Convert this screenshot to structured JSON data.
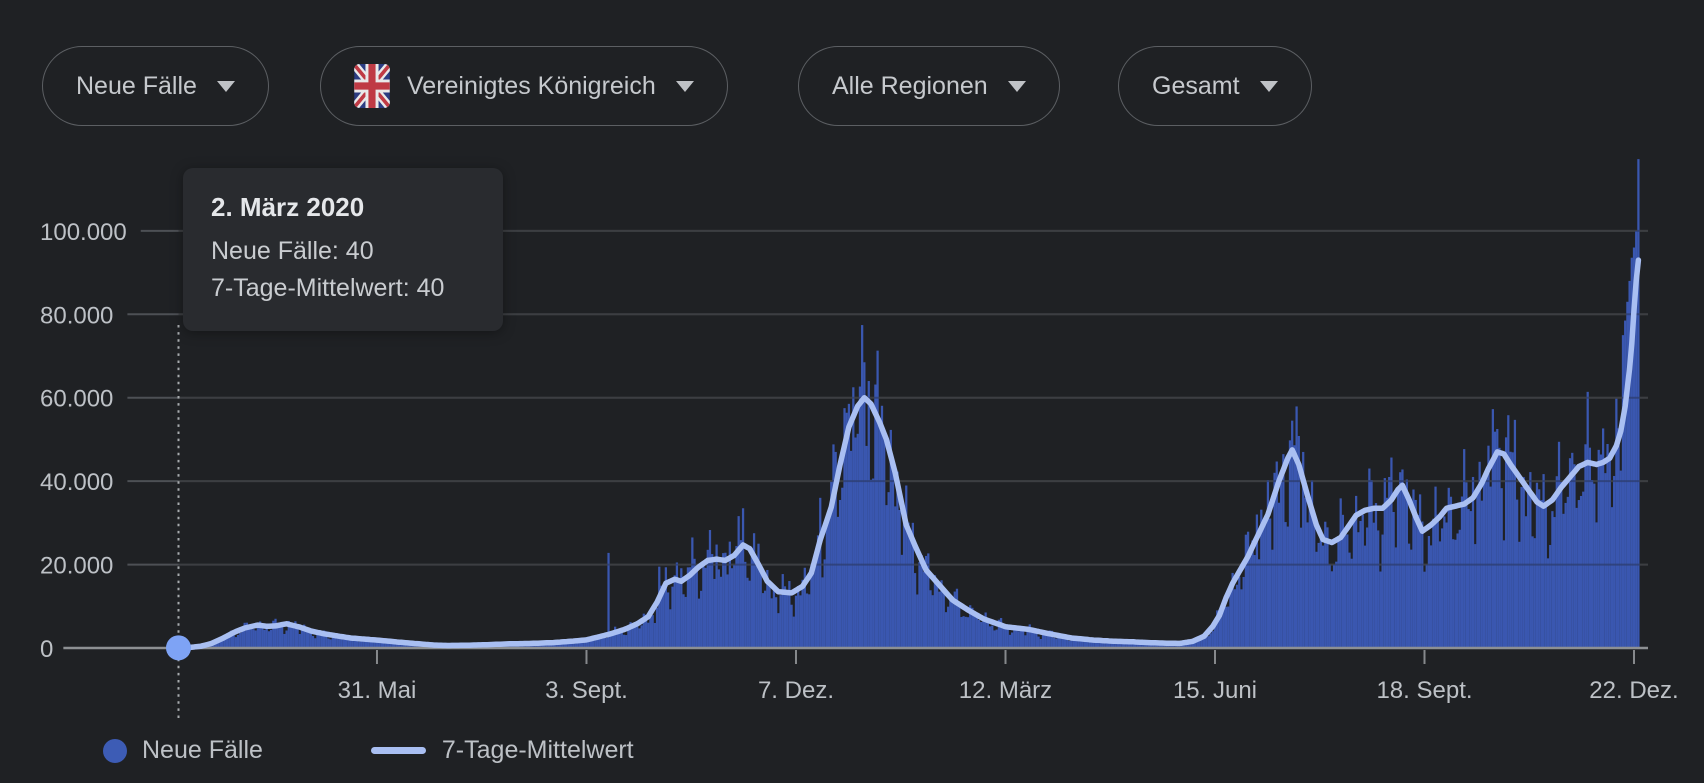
{
  "page": {
    "background": "#1f2124",
    "text_color": "#bdc1c6"
  },
  "controls": [
    {
      "label": "Neue Fälle"
    },
    {
      "label": "Vereinigtes Königreich",
      "flag": "united-kingdom"
    },
    {
      "label": "Alle Regionen"
    },
    {
      "label": "Gesamt"
    }
  ],
  "tooltip": {
    "title": "2. März 2020",
    "lines": [
      "Neue Fälle: 40",
      "7-Tage-Mittelwert: 40"
    ]
  },
  "legend": [
    {
      "label": "Neue Fälle",
      "marker": "dot",
      "color": "#3d5cb5"
    },
    {
      "label": "7-Tage-Mittelwert",
      "marker": "line",
      "color": "#a9bff2"
    }
  ],
  "chart_data": {
    "type": "bar",
    "title": "Neue Fälle – Vereinigtes Königreich",
    "legend_position": "bottom",
    "grid": true,
    "colors": {
      "bars": "#3a57b0",
      "avg_line": "#a9bff2",
      "gridline": "#4d5055",
      "baseline": "#8d9093",
      "axis_text": "#bdc1c6",
      "highlight_dot": "#7ea3f5",
      "dotted_guide": "#a7abae"
    },
    "series": [
      {
        "name": "Neue Fälle",
        "type": "bar",
        "color": "#3a57b0"
      },
      {
        "name": "7-Tage-Mittelwert",
        "type": "line",
        "color": "#a9bff2"
      }
    ],
    "x_axis": {
      "start_date": "2. März 2020",
      "days_total": 662,
      "ticks": [
        {
          "label": "31. Mai",
          "day": 90
        },
        {
          "label": "3. Sept.",
          "day": 185
        },
        {
          "label": "7. Dez.",
          "day": 280
        },
        {
          "label": "12. März",
          "day": 375
        },
        {
          "label": "15. Juni",
          "day": 470
        },
        {
          "label": "18. Sept.",
          "day": 565
        },
        {
          "label": "22. Dez.",
          "day": 660
        }
      ]
    },
    "y_axis": {
      "max": 108000,
      "ticks": [
        {
          "label": "0",
          "value": 0
        },
        {
          "label": "20.000",
          "value": 20000
        },
        {
          "label": "40.000",
          "value": 40000
        },
        {
          "label": "60.000",
          "value": 60000
        },
        {
          "label": "80.000",
          "value": 80000
        },
        {
          "label": "100.000",
          "value": 100000
        }
      ]
    },
    "highlight": {
      "date": "2. März 2020",
      "day": 0,
      "new_cases": 40,
      "avg_7day": 40
    },
    "avg_7day_points": [
      [
        0,
        40
      ],
      [
        5,
        150
      ],
      [
        10,
        400
      ],
      [
        15,
        1100
      ],
      [
        20,
        2300
      ],
      [
        25,
        3700
      ],
      [
        30,
        4800
      ],
      [
        36,
        5500
      ],
      [
        40,
        5200
      ],
      [
        44,
        5300
      ],
      [
        49,
        5800
      ],
      [
        55,
        5000
      ],
      [
        60,
        4100
      ],
      [
        66,
        3400
      ],
      [
        72,
        2900
      ],
      [
        78,
        2400
      ],
      [
        90,
        1900
      ],
      [
        100,
        1400
      ],
      [
        109,
        1000
      ],
      [
        116,
        700
      ],
      [
        122,
        600
      ],
      [
        130,
        650
      ],
      [
        140,
        800
      ],
      [
        150,
        1000
      ],
      [
        160,
        1100
      ],
      [
        170,
        1300
      ],
      [
        180,
        1700
      ],
      [
        185,
        1950
      ],
      [
        190,
        2600
      ],
      [
        196,
        3400
      ],
      [
        202,
        4400
      ],
      [
        208,
        5800
      ],
      [
        213,
        7500
      ],
      [
        217,
        11000
      ],
      [
        221,
        15500
      ],
      [
        225,
        16500
      ],
      [
        228,
        16000
      ],
      [
        232,
        17500
      ],
      [
        236,
        19500
      ],
      [
        240,
        21000
      ],
      [
        244,
        21300
      ],
      [
        248,
        21000
      ],
      [
        252,
        22200
      ],
      [
        256,
        24700
      ],
      [
        259,
        23800
      ],
      [
        263,
        20000
      ],
      [
        267,
        16000
      ],
      [
        272,
        13500
      ],
      [
        278,
        13200
      ],
      [
        283,
        14800
      ],
      [
        287,
        18000
      ],
      [
        291,
        25900
      ],
      [
        296,
        33800
      ],
      [
        300,
        44000
      ],
      [
        304,
        53000
      ],
      [
        308,
        58000
      ],
      [
        311,
        60000
      ],
      [
        314,
        58500
      ],
      [
        318,
        54000
      ],
      [
        321,
        50000
      ],
      [
        325,
        42000
      ],
      [
        330,
        29500
      ],
      [
        334,
        24500
      ],
      [
        339,
        18700
      ],
      [
        345,
        15100
      ],
      [
        351,
        11500
      ],
      [
        358,
        9100
      ],
      [
        365,
        7000
      ],
      [
        375,
        5100
      ],
      [
        385,
        4500
      ],
      [
        395,
        3400
      ],
      [
        405,
        2400
      ],
      [
        415,
        1900
      ],
      [
        425,
        1600
      ],
      [
        432,
        1500
      ],
      [
        440,
        1300
      ],
      [
        448,
        1150
      ],
      [
        454,
        1100
      ],
      [
        460,
        1600
      ],
      [
        465,
        2800
      ],
      [
        469,
        5200
      ],
      [
        472,
        7800
      ],
      [
        475,
        12000
      ],
      [
        478,
        15500
      ],
      [
        481,
        18300
      ],
      [
        485,
        22000
      ],
      [
        489,
        26500
      ],
      [
        494,
        32000
      ],
      [
        499,
        40000
      ],
      [
        503,
        45500
      ],
      [
        505,
        47500
      ],
      [
        508,
        44000
      ],
      [
        512,
        36500
      ],
      [
        516,
        29500
      ],
      [
        519,
        26000
      ],
      [
        523,
        25300
      ],
      [
        527,
        26500
      ],
      [
        531,
        29500
      ],
      [
        534,
        31800
      ],
      [
        538,
        33000
      ],
      [
        542,
        33500
      ],
      [
        546,
        33500
      ],
      [
        550,
        35500
      ],
      [
        553,
        38000
      ],
      [
        555,
        39000
      ],
      [
        558,
        35500
      ],
      [
        561,
        31500
      ],
      [
        564,
        28000
      ],
      [
        568,
        29500
      ],
      [
        572,
        31500
      ],
      [
        575,
        33500
      ],
      [
        579,
        34000
      ],
      [
        583,
        34500
      ],
      [
        587,
        36000
      ],
      [
        591,
        39500
      ],
      [
        594,
        43000
      ],
      [
        598,
        47000
      ],
      [
        601,
        46500
      ],
      [
        604,
        44000
      ],
      [
        608,
        41000
      ],
      [
        612,
        38000
      ],
      [
        616,
        35000
      ],
      [
        619,
        34000
      ],
      [
        623,
        35500
      ],
      [
        627,
        38500
      ],
      [
        631,
        41000
      ],
      [
        635,
        43500
      ],
      [
        639,
        44500
      ],
      [
        643,
        44000
      ],
      [
        646,
        44500
      ],
      [
        649,
        45500
      ],
      [
        652,
        48500
      ],
      [
        654,
        52000
      ],
      [
        656,
        58000
      ],
      [
        658,
        67000
      ],
      [
        659,
        73000
      ],
      [
        660,
        81000
      ],
      [
        661,
        88000
      ],
      [
        662,
        93000
      ]
    ],
    "bar_spikes": [
      [
        195,
        22800
      ],
      [
        218,
        19500
      ],
      [
        226,
        20500
      ],
      [
        233,
        26500
      ],
      [
        244,
        24800
      ],
      [
        250,
        25500
      ],
      [
        256,
        33500
      ],
      [
        263,
        25000
      ],
      [
        291,
        36000
      ],
      [
        298,
        47000
      ],
      [
        302,
        57500
      ],
      [
        306,
        62500
      ],
      [
        311,
        68500
      ],
      [
        313,
        64000
      ],
      [
        316,
        60000
      ],
      [
        319,
        56500
      ],
      [
        323,
        50000
      ],
      [
        489,
        32000
      ],
      [
        497,
        42000
      ],
      [
        505,
        54500
      ],
      [
        510,
        47000
      ],
      [
        549,
        41000
      ],
      [
        555,
        42800
      ],
      [
        560,
        38000
      ],
      [
        587,
        41000
      ],
      [
        594,
        48500
      ],
      [
        598,
        52500
      ],
      [
        602,
        50500
      ],
      [
        631,
        45500
      ],
      [
        639,
        48000
      ],
      [
        644,
        47500
      ],
      [
        652,
        56000
      ],
      [
        655,
        75000
      ],
      [
        656,
        78500
      ],
      [
        657,
        83000
      ],
      [
        658,
        88000
      ],
      [
        659,
        93500
      ],
      [
        660,
        96000
      ],
      [
        661,
        100000
      ],
      [
        662,
        106000
      ]
    ]
  }
}
